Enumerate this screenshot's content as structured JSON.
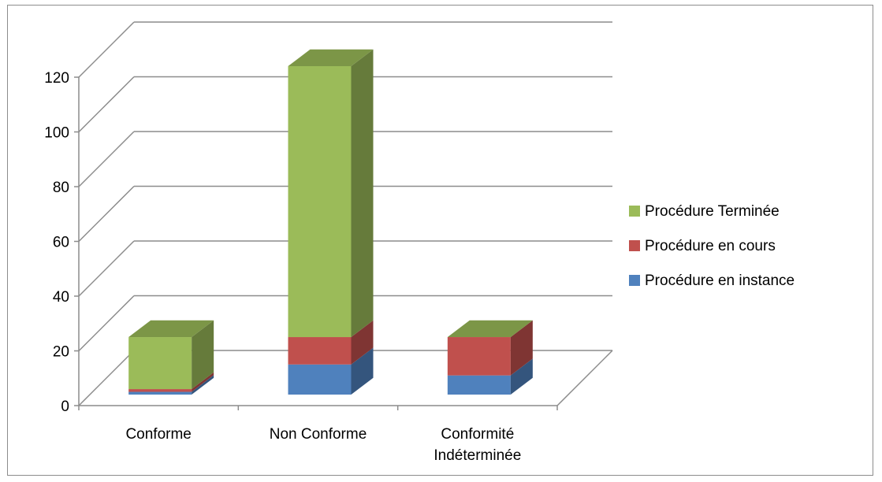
{
  "chart_data": {
    "type": "bar",
    "stacked": true,
    "three_d": true,
    "categories": [
      [
        "Conforme"
      ],
      [
        "Non Conforme"
      ],
      [
        "Conformité",
        "Indéterminée"
      ]
    ],
    "series": [
      {
        "name": "Procédure en instance",
        "color": "#4F81BD",
        "values": [
          1,
          11,
          7
        ]
      },
      {
        "name": "Procédure en cours",
        "color": "#C0504D",
        "values": [
          1,
          10,
          14
        ]
      },
      {
        "name": "Procédure Terminée",
        "color": "#9BBB59",
        "values": [
          19,
          99,
          0
        ]
      }
    ],
    "ylim": [
      0,
      120
    ],
    "yticks": [
      0,
      20,
      40,
      60,
      80,
      100,
      120
    ],
    "grid": true,
    "legend_position": "right",
    "title": "",
    "xlabel": "",
    "ylabel": ""
  }
}
